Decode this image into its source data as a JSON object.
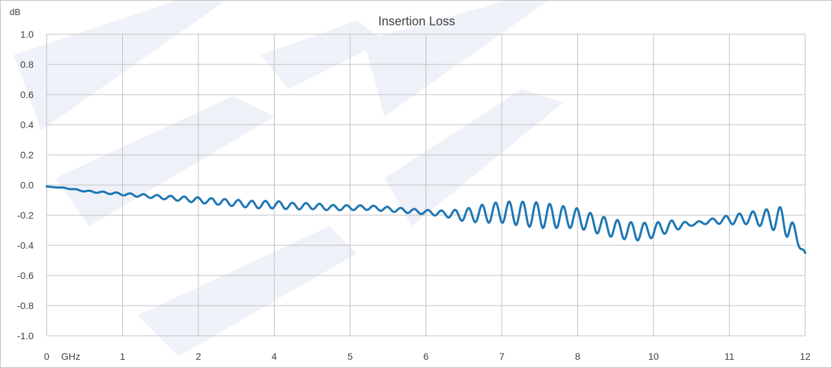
{
  "chart_data": {
    "type": "line",
    "title": "Insertion Loss",
    "ylabel": "dB",
    "xlabel": "GHz",
    "x_tick_labels": [
      "0",
      "1",
      "2",
      "4",
      "5",
      "6",
      "7",
      "8",
      "10",
      "11",
      "12"
    ],
    "y_ticks": [
      1.0,
      0.8,
      0.6,
      0.4,
      0.2,
      0.0,
      -0.2,
      -0.4,
      -0.6,
      -0.8,
      -1.0
    ],
    "y_tick_labels": [
      "1.0",
      "0.8",
      "0.6",
      "0.4",
      "0.2",
      "0.0",
      "-0.2",
      "-0.4",
      "-0.6",
      "-0.8",
      "-1.0"
    ],
    "ylim": [
      -1.0,
      1.0
    ],
    "xlim": [
      0,
      10
    ],
    "grid": true,
    "legend": "none",
    "series": [
      {
        "color": "#1f77b4",
        "x": [
          0,
          0.25,
          0.5,
          0.75,
          1,
          1.25,
          1.5,
          1.75,
          2,
          2.25,
          2.5,
          2.75,
          3,
          3.25,
          3.5,
          3.75,
          4,
          4.25,
          4.5,
          4.75,
          5,
          5.25,
          5.5,
          5.75,
          6,
          6.25,
          6.5,
          6.75,
          7,
          7.25,
          7.5,
          7.75,
          8,
          8.25,
          8.5,
          8.75,
          9,
          9.25,
          9.5,
          9.75,
          10
        ],
        "y": [
          -0.01,
          -0.02,
          -0.04,
          -0.05,
          -0.06,
          -0.07,
          -0.08,
          -0.09,
          -0.1,
          -0.11,
          -0.12,
          -0.13,
          -0.13,
          -0.14,
          -0.14,
          -0.15,
          -0.15,
          -0.15,
          -0.16,
          -0.17,
          -0.18,
          -0.19,
          -0.2,
          -0.19,
          -0.18,
          -0.19,
          -0.2,
          -0.21,
          -0.22,
          -0.26,
          -0.29,
          -0.31,
          -0.3,
          -0.27,
          -0.26,
          -0.24,
          -0.23,
          -0.22,
          -0.22,
          -0.24,
          -0.45
        ],
        "ripple": [
          0,
          0.002,
          0.004,
          0.006,
          0.008,
          0.01,
          0.012,
          0.015,
          0.018,
          0.02,
          0.022,
          0.024,
          0.025,
          0.022,
          0.02,
          0.018,
          0.016,
          0.015,
          0.015,
          0.015,
          0.015,
          0.02,
          0.04,
          0.06,
          0.07,
          0.08,
          0.085,
          0.075,
          0.065,
          0.06,
          0.06,
          0.06,
          0.05,
          0.035,
          0.01,
          0.015,
          0.03,
          0.04,
          0.06,
          0.1,
          0
        ]
      }
    ]
  }
}
